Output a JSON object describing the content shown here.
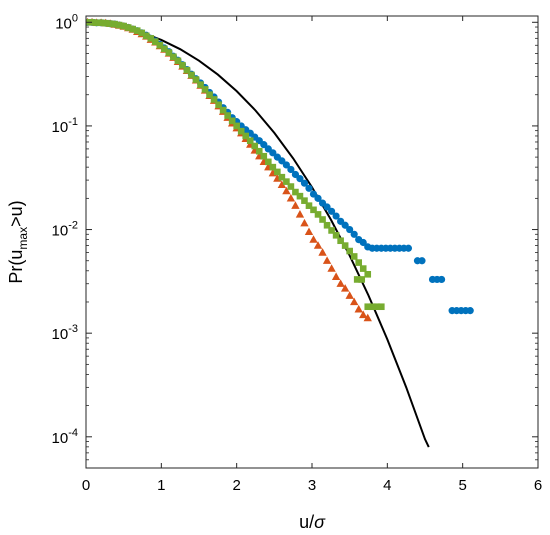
{
  "chart_data": {
    "type": "scatter",
    "title": "",
    "xlabel": {
      "base": "u/",
      "symbol": "σ"
    },
    "ylabel": {
      "pre": "Pr(u",
      "sub": "max",
      "post": ">u)"
    },
    "xlim": [
      0,
      6
    ],
    "ylim": [
      5e-05,
      1.15
    ],
    "yscale": "log",
    "grid": false,
    "legend": "none",
    "x_ticks": [
      0,
      1,
      2,
      3,
      4,
      5,
      6
    ],
    "y_ticks": [
      {
        "value": 1,
        "base": "10",
        "exp": "0"
      },
      {
        "value": 0.1,
        "base": "10",
        "exp": "-1"
      },
      {
        "value": 0.01,
        "base": "10",
        "exp": "-2"
      },
      {
        "value": 0.001,
        "base": "10",
        "exp": "-3"
      },
      {
        "value": 0.0001,
        "base": "10",
        "exp": "-4"
      }
    ],
    "series": [
      {
        "marker": "circle",
        "color": "#0072BD",
        "points": [
          [
            0.02,
            1.0
          ],
          [
            0.08,
            1.0
          ],
          [
            0.14,
            0.99
          ],
          [
            0.2,
            0.99
          ],
          [
            0.26,
            0.98
          ],
          [
            0.32,
            0.97
          ],
          [
            0.38,
            0.96
          ],
          [
            0.44,
            0.94
          ],
          [
            0.5,
            0.92
          ],
          [
            0.56,
            0.89
          ],
          [
            0.62,
            0.86
          ],
          [
            0.68,
            0.83
          ],
          [
            0.74,
            0.79
          ],
          [
            0.8,
            0.75
          ],
          [
            0.86,
            0.7
          ],
          [
            0.92,
            0.66
          ],
          [
            0.98,
            0.61
          ],
          [
            1.04,
            0.565
          ],
          [
            1.1,
            0.52
          ],
          [
            1.16,
            0.47
          ],
          [
            1.22,
            0.43
          ],
          [
            1.28,
            0.39
          ],
          [
            1.34,
            0.35
          ],
          [
            1.4,
            0.315
          ],
          [
            1.46,
            0.285
          ],
          [
            1.52,
            0.26
          ],
          [
            1.58,
            0.235
          ],
          [
            1.64,
            0.21
          ],
          [
            1.7,
            0.19
          ],
          [
            1.76,
            0.17
          ],
          [
            1.82,
            0.15
          ],
          [
            1.88,
            0.135
          ],
          [
            1.94,
            0.12
          ],
          [
            2.0,
            0.11
          ],
          [
            2.06,
            0.1
          ],
          [
            2.12,
            0.092
          ],
          [
            2.18,
            0.085
          ],
          [
            2.24,
            0.078
          ],
          [
            2.3,
            0.072
          ],
          [
            2.36,
            0.066
          ],
          [
            2.42,
            0.06
          ],
          [
            2.48,
            0.055
          ],
          [
            2.54,
            0.05
          ],
          [
            2.6,
            0.046
          ],
          [
            2.66,
            0.042
          ],
          [
            2.72,
            0.038
          ],
          [
            2.78,
            0.034
          ],
          [
            2.84,
            0.031
          ],
          [
            2.9,
            0.028
          ],
          [
            2.96,
            0.025
          ],
          [
            3.02,
            0.022
          ],
          [
            3.08,
            0.02
          ],
          [
            3.14,
            0.018
          ],
          [
            3.2,
            0.0165
          ],
          [
            3.26,
            0.015
          ],
          [
            3.32,
            0.0135
          ],
          [
            3.38,
            0.012
          ],
          [
            3.44,
            0.011
          ],
          [
            3.5,
            0.01
          ],
          [
            3.56,
            0.009
          ],
          [
            3.62,
            0.008
          ],
          [
            3.68,
            0.0075
          ],
          [
            3.74,
            0.0068
          ],
          [
            3.8,
            0.0066
          ],
          [
            3.86,
            0.0066
          ],
          [
            3.92,
            0.0066
          ],
          [
            3.98,
            0.0066
          ],
          [
            4.04,
            0.0066
          ],
          [
            4.1,
            0.0066
          ],
          [
            4.16,
            0.0066
          ],
          [
            4.22,
            0.0066
          ],
          [
            4.28,
            0.0066
          ],
          [
            4.4,
            0.005
          ],
          [
            4.46,
            0.005
          ],
          [
            4.6,
            0.0033
          ],
          [
            4.66,
            0.0033
          ],
          [
            4.72,
            0.0033
          ],
          [
            4.86,
            0.00165
          ],
          [
            4.92,
            0.00165
          ],
          [
            4.98,
            0.00165
          ],
          [
            5.04,
            0.00165
          ],
          [
            5.1,
            0.00165
          ]
        ]
      },
      {
        "marker": "triangle",
        "color": "#D95319",
        "points": [
          [
            0.02,
            1.0
          ],
          [
            0.08,
            1.0
          ],
          [
            0.14,
            0.99
          ],
          [
            0.2,
            0.99
          ],
          [
            0.26,
            0.98
          ],
          [
            0.32,
            0.97
          ],
          [
            0.38,
            0.95
          ],
          [
            0.44,
            0.93
          ],
          [
            0.5,
            0.91
          ],
          [
            0.56,
            0.88
          ],
          [
            0.62,
            0.85
          ],
          [
            0.68,
            0.81
          ],
          [
            0.74,
            0.77
          ],
          [
            0.8,
            0.73
          ],
          [
            0.86,
            0.68
          ],
          [
            0.92,
            0.64
          ],
          [
            0.98,
            0.59
          ],
          [
            1.04,
            0.545
          ],
          [
            1.1,
            0.5
          ],
          [
            1.16,
            0.455
          ],
          [
            1.22,
            0.415
          ],
          [
            1.28,
            0.375
          ],
          [
            1.34,
            0.34
          ],
          [
            1.4,
            0.305
          ],
          [
            1.46,
            0.275
          ],
          [
            1.52,
            0.245
          ],
          [
            1.58,
            0.22
          ],
          [
            1.64,
            0.195
          ],
          [
            1.7,
            0.175
          ],
          [
            1.76,
            0.155
          ],
          [
            1.82,
            0.137
          ],
          [
            1.88,
            0.12
          ],
          [
            1.94,
            0.106
          ],
          [
            2.0,
            0.095
          ],
          [
            2.06,
            0.085
          ],
          [
            2.12,
            0.075
          ],
          [
            2.18,
            0.066
          ],
          [
            2.24,
            0.058
          ],
          [
            2.3,
            0.051
          ],
          [
            2.36,
            0.045
          ],
          [
            2.42,
            0.04
          ],
          [
            2.48,
            0.035
          ],
          [
            2.54,
            0.031
          ],
          [
            2.6,
            0.027
          ],
          [
            2.66,
            0.0235
          ],
          [
            2.72,
            0.02
          ],
          [
            2.78,
            0.017
          ],
          [
            2.84,
            0.014
          ],
          [
            2.9,
            0.0115
          ],
          [
            2.96,
            0.0095
          ],
          [
            3.02,
            0.008
          ],
          [
            3.08,
            0.007
          ],
          [
            3.14,
            0.006
          ],
          [
            3.2,
            0.005
          ],
          [
            3.26,
            0.0042
          ],
          [
            3.32,
            0.0035
          ],
          [
            3.38,
            0.003
          ],
          [
            3.44,
            0.0027
          ],
          [
            3.5,
            0.0023
          ],
          [
            3.56,
            0.002
          ],
          [
            3.62,
            0.0017
          ],
          [
            3.68,
            0.0015
          ],
          [
            3.74,
            0.0014
          ]
        ]
      },
      {
        "marker": "square",
        "color": "#77AC30",
        "points": [
          [
            0.02,
            1.0
          ],
          [
            0.08,
            1.0
          ],
          [
            0.14,
            0.99
          ],
          [
            0.2,
            0.99
          ],
          [
            0.26,
            0.98
          ],
          [
            0.32,
            0.97
          ],
          [
            0.38,
            0.96
          ],
          [
            0.44,
            0.94
          ],
          [
            0.5,
            0.92
          ],
          [
            0.56,
            0.89
          ],
          [
            0.62,
            0.86
          ],
          [
            0.68,
            0.83
          ],
          [
            0.74,
            0.79
          ],
          [
            0.8,
            0.74
          ],
          [
            0.86,
            0.7
          ],
          [
            0.92,
            0.65
          ],
          [
            0.98,
            0.6
          ],
          [
            1.04,
            0.555
          ],
          [
            1.1,
            0.51
          ],
          [
            1.16,
            0.465
          ],
          [
            1.22,
            0.425
          ],
          [
            1.28,
            0.385
          ],
          [
            1.34,
            0.345
          ],
          [
            1.4,
            0.31
          ],
          [
            1.46,
            0.28
          ],
          [
            1.52,
            0.25
          ],
          [
            1.58,
            0.225
          ],
          [
            1.64,
            0.2
          ],
          [
            1.7,
            0.18
          ],
          [
            1.76,
            0.16
          ],
          [
            1.82,
            0.142
          ],
          [
            1.88,
            0.126
          ],
          [
            1.94,
            0.112
          ],
          [
            2.0,
            0.1
          ],
          [
            2.06,
            0.089
          ],
          [
            2.12,
            0.08
          ],
          [
            2.18,
            0.072
          ],
          [
            2.24,
            0.064
          ],
          [
            2.3,
            0.057
          ],
          [
            2.36,
            0.051
          ],
          [
            2.42,
            0.045
          ],
          [
            2.48,
            0.04
          ],
          [
            2.54,
            0.036
          ],
          [
            2.6,
            0.032
          ],
          [
            2.66,
            0.029
          ],
          [
            2.72,
            0.026
          ],
          [
            2.78,
            0.023
          ],
          [
            2.84,
            0.021
          ],
          [
            2.9,
            0.019
          ],
          [
            2.96,
            0.017
          ],
          [
            3.02,
            0.0155
          ],
          [
            3.08,
            0.014
          ],
          [
            3.14,
            0.0125
          ],
          [
            3.2,
            0.011
          ],
          [
            3.26,
            0.0098
          ],
          [
            3.32,
            0.0088
          ],
          [
            3.38,
            0.0078
          ],
          [
            3.44,
            0.007
          ],
          [
            3.5,
            0.0062
          ],
          [
            3.56,
            0.0055
          ],
          [
            3.62,
            0.0048
          ],
          [
            3.68,
            0.0042
          ],
          [
            3.74,
            0.0037
          ],
          [
            3.6,
            0.0033
          ],
          [
            3.66,
            0.0033
          ],
          [
            3.74,
            0.0018
          ],
          [
            3.8,
            0.0018
          ],
          [
            3.86,
            0.0018
          ],
          [
            3.92,
            0.0018
          ]
        ]
      }
    ],
    "curve": {
      "color": "#000000",
      "points": [
        [
          0.0,
          1.0
        ],
        [
          0.25,
          0.9394
        ],
        [
          0.5,
          0.8825
        ],
        [
          0.75,
          0.7906
        ],
        [
          1.0,
          0.6753
        ],
        [
          1.25,
          0.5502
        ],
        [
          1.5,
          0.4262
        ],
        [
          1.75,
          0.3128
        ],
        [
          2.0,
          0.2166
        ],
        [
          2.25,
          0.1409
        ],
        [
          2.5,
          0.0857
        ],
        [
          2.75,
          0.0486
        ],
        [
          3.0,
          0.0256
        ],
        [
          3.25,
          0.01249
        ],
        [
          3.5,
          0.00561
        ],
        [
          3.75,
          0.00231
        ],
        [
          4.0,
          0.000871
        ],
        [
          4.25,
          0.000301
        ],
        [
          4.5,
          9.49e-05
        ],
        [
          4.55,
          7.97e-05
        ]
      ]
    }
  }
}
